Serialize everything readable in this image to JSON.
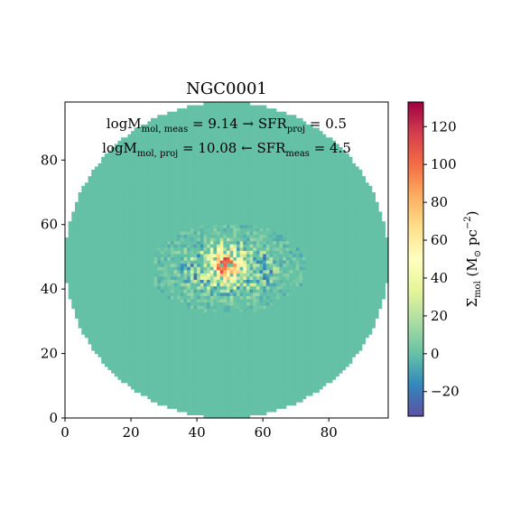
{
  "chart_data": {
    "type": "heatmap",
    "title": "NGC0001",
    "annotations": {
      "line1": {
        "m_main": "logM",
        "m_sub": "mol, meas",
        "m_value": " = 9.14 → ",
        "s_main": "SFR",
        "s_sub": "proj",
        "s_value": " = 0.5"
      },
      "line2": {
        "m_main": "logM",
        "m_sub": "mol, proj",
        "m_value": " = 10.08 ← ",
        "s_main": "SFR",
        "s_sub": "meas",
        "s_value": " = 4.5"
      }
    },
    "grid_size": 98,
    "xlim": [
      0,
      98
    ],
    "ylim": [
      0,
      98
    ],
    "x_ticks": [
      0,
      20,
      40,
      60,
      80
    ],
    "y_ticks": [
      0,
      20,
      40,
      60,
      80
    ],
    "disk": {
      "center": [
        49,
        49
      ],
      "radius": 49,
      "background_value": 0
    },
    "emission_region": {
      "center": [
        49,
        46
      ],
      "x_extent": [
        27,
        75
      ],
      "y_extent": [
        33,
        61
      ],
      "peak_value": 130,
      "min_value": -30
    },
    "colorbar": {
      "label_main": "Σ",
      "label_sub": "mol",
      "label_units": " (M",
      "label_units_sub": "⊙",
      "label_units_end": " pc",
      "label_units_sup": "−2",
      "label_close": ")",
      "range": [
        -33,
        133
      ],
      "ticks": [
        -20,
        0,
        20,
        40,
        60,
        80,
        100,
        120
      ],
      "tick_labels": [
        "−20",
        "0",
        "20",
        "40",
        "60",
        "80",
        "100",
        "120"
      ],
      "colormap": "Spectral_r",
      "colors": [
        "#5e4fa2",
        "#3288bd",
        "#66c2a5",
        "#abdda4",
        "#e6f598",
        "#ffffbf",
        "#fee08b",
        "#fdae61",
        "#f46d43",
        "#d53e4f",
        "#9e0142"
      ]
    }
  }
}
